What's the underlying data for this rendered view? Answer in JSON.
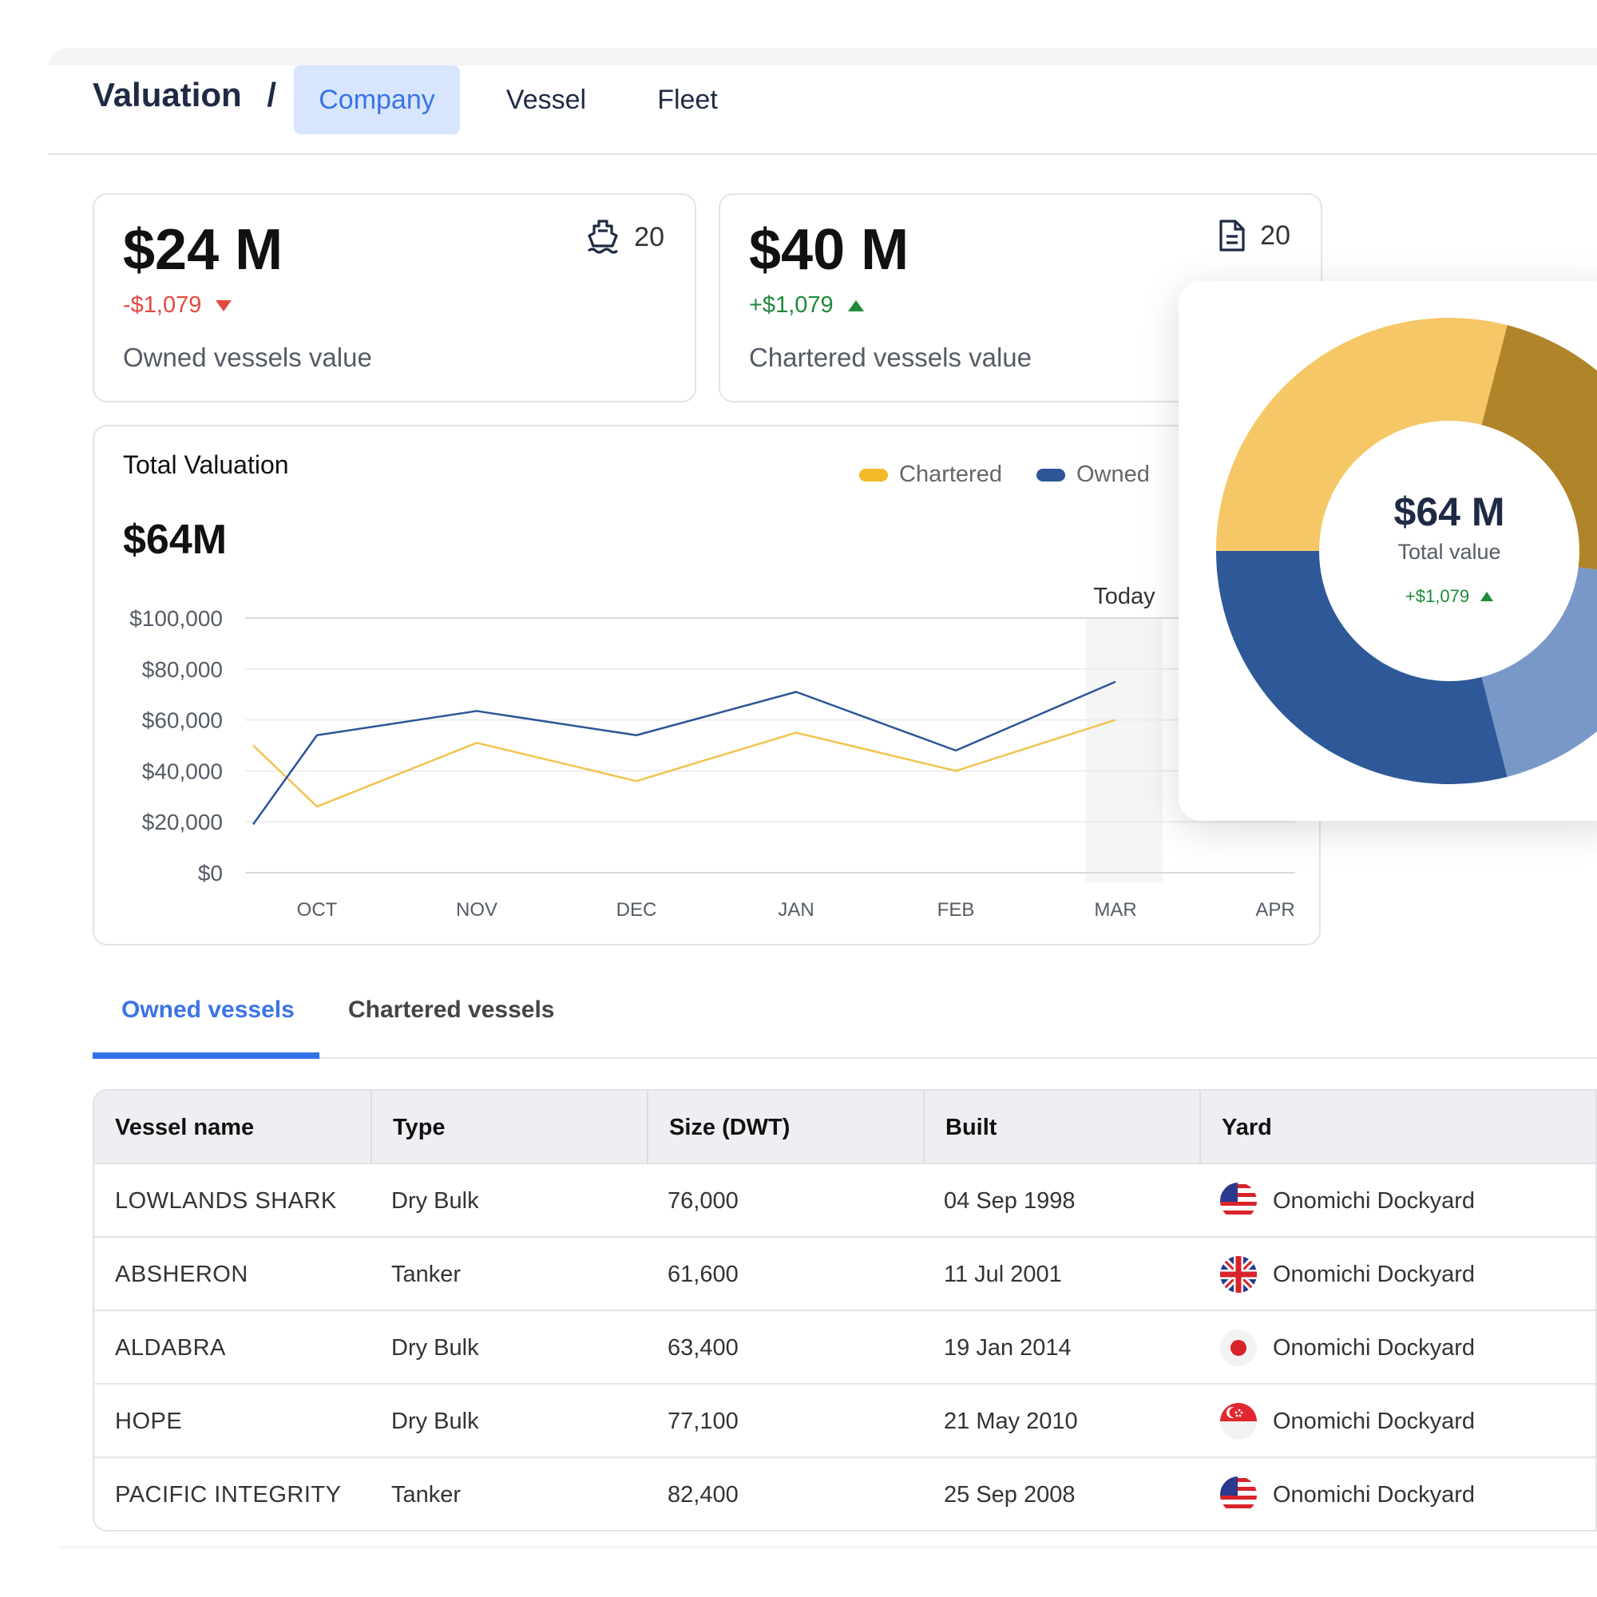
{
  "header": {
    "breadcrumb": "Valuation",
    "separator": "/",
    "tabs": [
      {
        "label": "Company",
        "active": true
      },
      {
        "label": "Vessel",
        "active": false
      },
      {
        "label": "Fleet",
        "active": false
      }
    ]
  },
  "stats": {
    "owned": {
      "value": "$24 M",
      "delta": "-$1,079",
      "caption": "Owned vessels value",
      "count": "20",
      "icon": "ship-icon"
    },
    "chartered": {
      "value": "$40 M",
      "delta": "+$1,079",
      "caption": "Chartered vessels value",
      "count": "20",
      "icon": "document-icon"
    }
  },
  "valuation_card": {
    "title": "Total Valuation",
    "total": "$64M"
  },
  "chart_data": {
    "type": "line",
    "x": [
      "OCT",
      "NOV",
      "DEC",
      "JAN",
      "FEB",
      "MAR",
      "APR"
    ],
    "ylim": [
      0,
      100000
    ],
    "yticks": [
      "$100,000",
      "$80,000",
      "$60,000",
      "$40,000",
      "$20,000",
      "$0"
    ],
    "marker_label": "Today",
    "legend_placement": "top-right",
    "grid": true,
    "series": [
      {
        "name": "Chartered",
        "color": "#f2c34e",
        "points": [
          [
            -0.4,
            50000
          ],
          [
            0,
            26000
          ],
          [
            1,
            51000
          ],
          [
            2,
            36000
          ],
          [
            3,
            55000
          ],
          [
            4,
            40000
          ],
          [
            5,
            60000
          ]
        ]
      },
      {
        "name": "Owned",
        "color": "#2d5597",
        "points": [
          [
            -0.4,
            19000
          ],
          [
            0,
            54000
          ],
          [
            1,
            63500
          ],
          [
            2,
            54000
          ],
          [
            3,
            71000
          ],
          [
            4,
            48000
          ],
          [
            5,
            75000
          ]
        ]
      }
    ]
  },
  "donut": {
    "value": "$64 M",
    "label": "Total value",
    "delta": "+$1,079",
    "segments": [
      {
        "color": "#f6c767",
        "value": 0.29
      },
      {
        "color": "#b08428",
        "value": 0.23
      },
      {
        "color": "#7899c8",
        "value": 0.19
      },
      {
        "color": "#2e5898",
        "value": 0.29
      }
    ]
  },
  "panel_tabs": [
    {
      "label": "Owned vessels",
      "active": true
    },
    {
      "label": "Chartered vessels",
      "active": false
    }
  ],
  "table": {
    "columns": [
      "Vessel name",
      "Type",
      "Size (DWT)",
      "Built",
      "Yard"
    ],
    "rows": [
      {
        "name": "LOWLANDS SHARK",
        "type": "Dry Bulk",
        "size": "76,000",
        "built": "04 Sep 1998",
        "yard": "Onomichi Dockyard",
        "flag": "us-flag-icon"
      },
      {
        "name": "ABSHERON",
        "type": "Tanker",
        "size": "61,600",
        "built": "11 Jul 2001",
        "yard": "Onomichi Dockyard",
        "flag": "uk-flag-icon"
      },
      {
        "name": "ALDABRA",
        "type": "Dry Bulk",
        "size": "63,400",
        "built": "19 Jan 2014",
        "yard": "Onomichi Dockyard",
        "flag": "japan-flag-icon"
      },
      {
        "name": "HOPE",
        "type": "Dry Bulk",
        "size": "77,100",
        "built": "21 May 2010",
        "yard": "Onomichi Dockyard",
        "flag": "singapore-flag-icon"
      },
      {
        "name": "PACIFIC INTEGRITY",
        "type": "Tanker",
        "size": "82,400",
        "built": "25 Sep 2008",
        "yard": "Onomichi Dockyard",
        "flag": "us-flag-icon"
      }
    ]
  }
}
